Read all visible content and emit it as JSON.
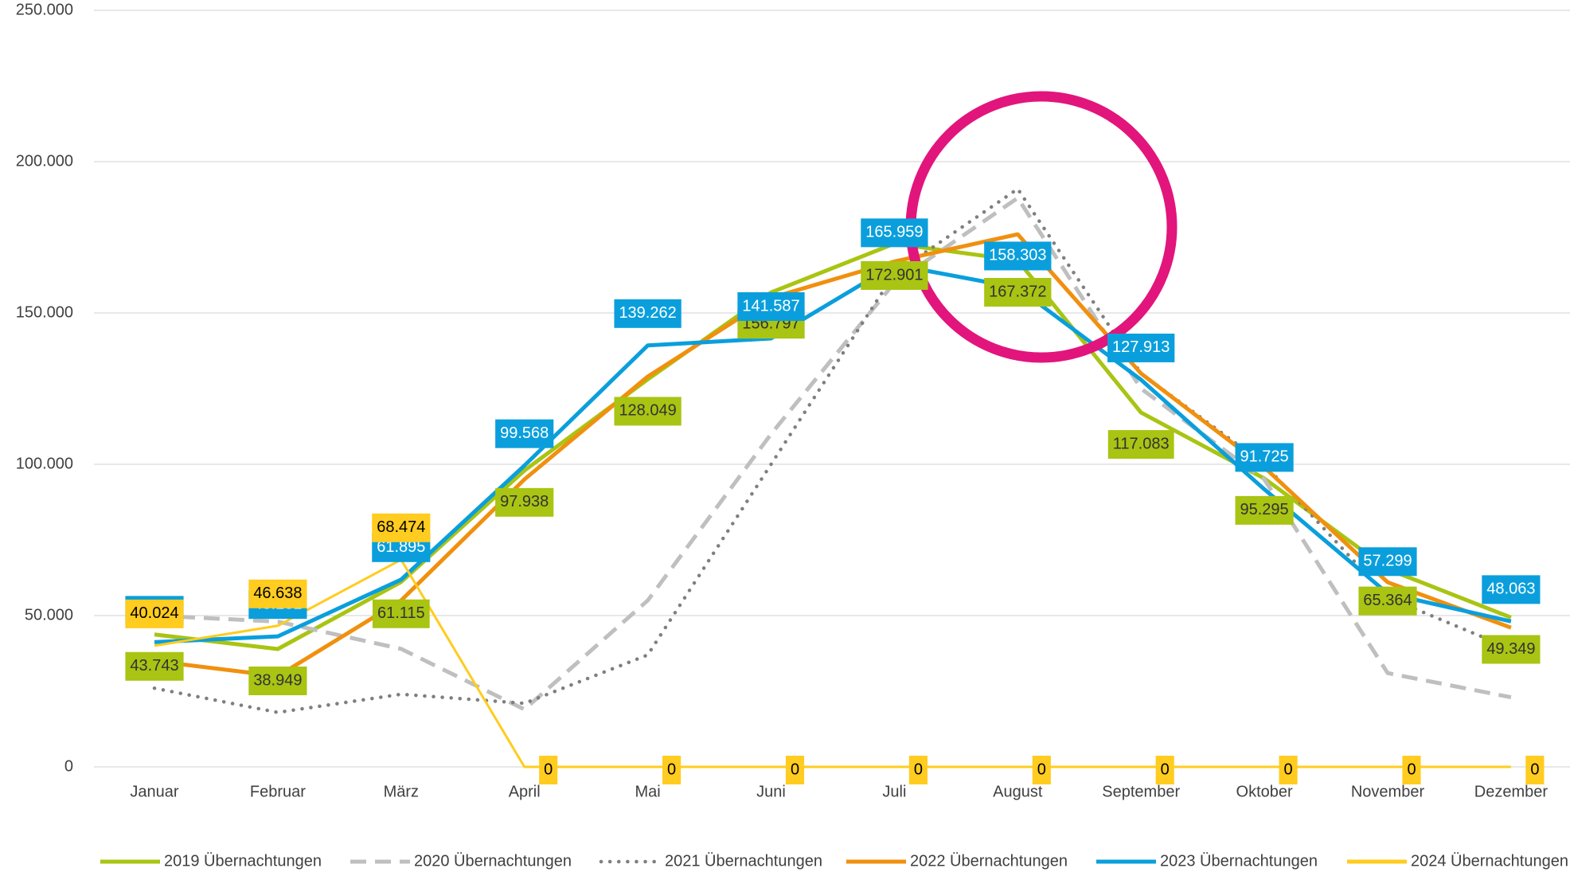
{
  "chart_data": {
    "type": "line",
    "categories": [
      "Januar",
      "Februar",
      "März",
      "April",
      "Mai",
      "Juni",
      "Juli",
      "August",
      "September",
      "Oktober",
      "November",
      "Dezember"
    ],
    "ylim": [
      0,
      250000
    ],
    "yticks": [
      0,
      {
        "value": 50000,
        "label": "50.000"
      },
      {
        "value": 100000,
        "label": "100.000"
      },
      {
        "value": 150000,
        "label": "150.000"
      },
      {
        "value": 200000,
        "label": "200.000"
      },
      {
        "value": 250000,
        "label": "250.000"
      }
    ],
    "grid": true,
    "series": [
      {
        "name": "2019 Übernachtungen",
        "color": "#a9c412",
        "style": "solid",
        "values": [
          43743,
          38949,
          61115,
          97938,
          128049,
          156797,
          172901,
          167372,
          117083,
          95295,
          65364,
          49349
        ],
        "value_labels": [
          "43.743",
          "38.949",
          "61.115",
          "97.938",
          "128.049",
          "156.797",
          "172.901",
          "167.372",
          "117.083",
          "95.295",
          "65.364",
          "49.349"
        ]
      },
      {
        "name": "2020 Übernachtungen",
        "color": "#bfbfbf",
        "style": "dashed",
        "values": [
          50000,
          48000,
          39000,
          19000,
          55000,
          110000,
          160000,
          188000,
          125000,
          95000,
          31000,
          23000
        ]
      },
      {
        "name": "2021 Übernachtungen",
        "color": "#7f7f7f",
        "style": "dotted",
        "values": [
          26000,
          18000,
          24000,
          21000,
          37000,
          100000,
          163000,
          191000,
          130000,
          100000,
          56000,
          39000
        ]
      },
      {
        "name": "2022 Übernachtungen",
        "color": "#f0900f",
        "style": "solid",
        "values": [
          35000,
          30000,
          55000,
          95000,
          129000,
          155000,
          167000,
          176000,
          130000,
          99000,
          61000,
          46000
        ]
      },
      {
        "name": "2023 Übernachtungen",
        "color": "#0a9fdc",
        "style": "solid",
        "values": [
          41220,
          43131,
          61895,
          99568,
          139262,
          141587,
          165959,
          158303,
          127913,
          91725,
          57299,
          48063
        ],
        "value_labels": [
          "41.220",
          "43.131",
          "61.895",
          "99.568",
          "139.262",
          "141.587",
          "165.959",
          "158.303",
          "127.913",
          "91.725",
          "57.299",
          "48.063"
        ]
      },
      {
        "name": "2024 Übernachtungen",
        "color": "#ffcc1f",
        "style": "solid",
        "values": [
          40024,
          46638,
          68474,
          0,
          0,
          0,
          0,
          0,
          0,
          0,
          0,
          0
        ],
        "value_labels": [
          "40.024",
          "46.638",
          "68.474",
          "0",
          "0",
          "0",
          "0",
          "0",
          "0",
          "0",
          "0",
          "0"
        ]
      }
    ]
  }
}
